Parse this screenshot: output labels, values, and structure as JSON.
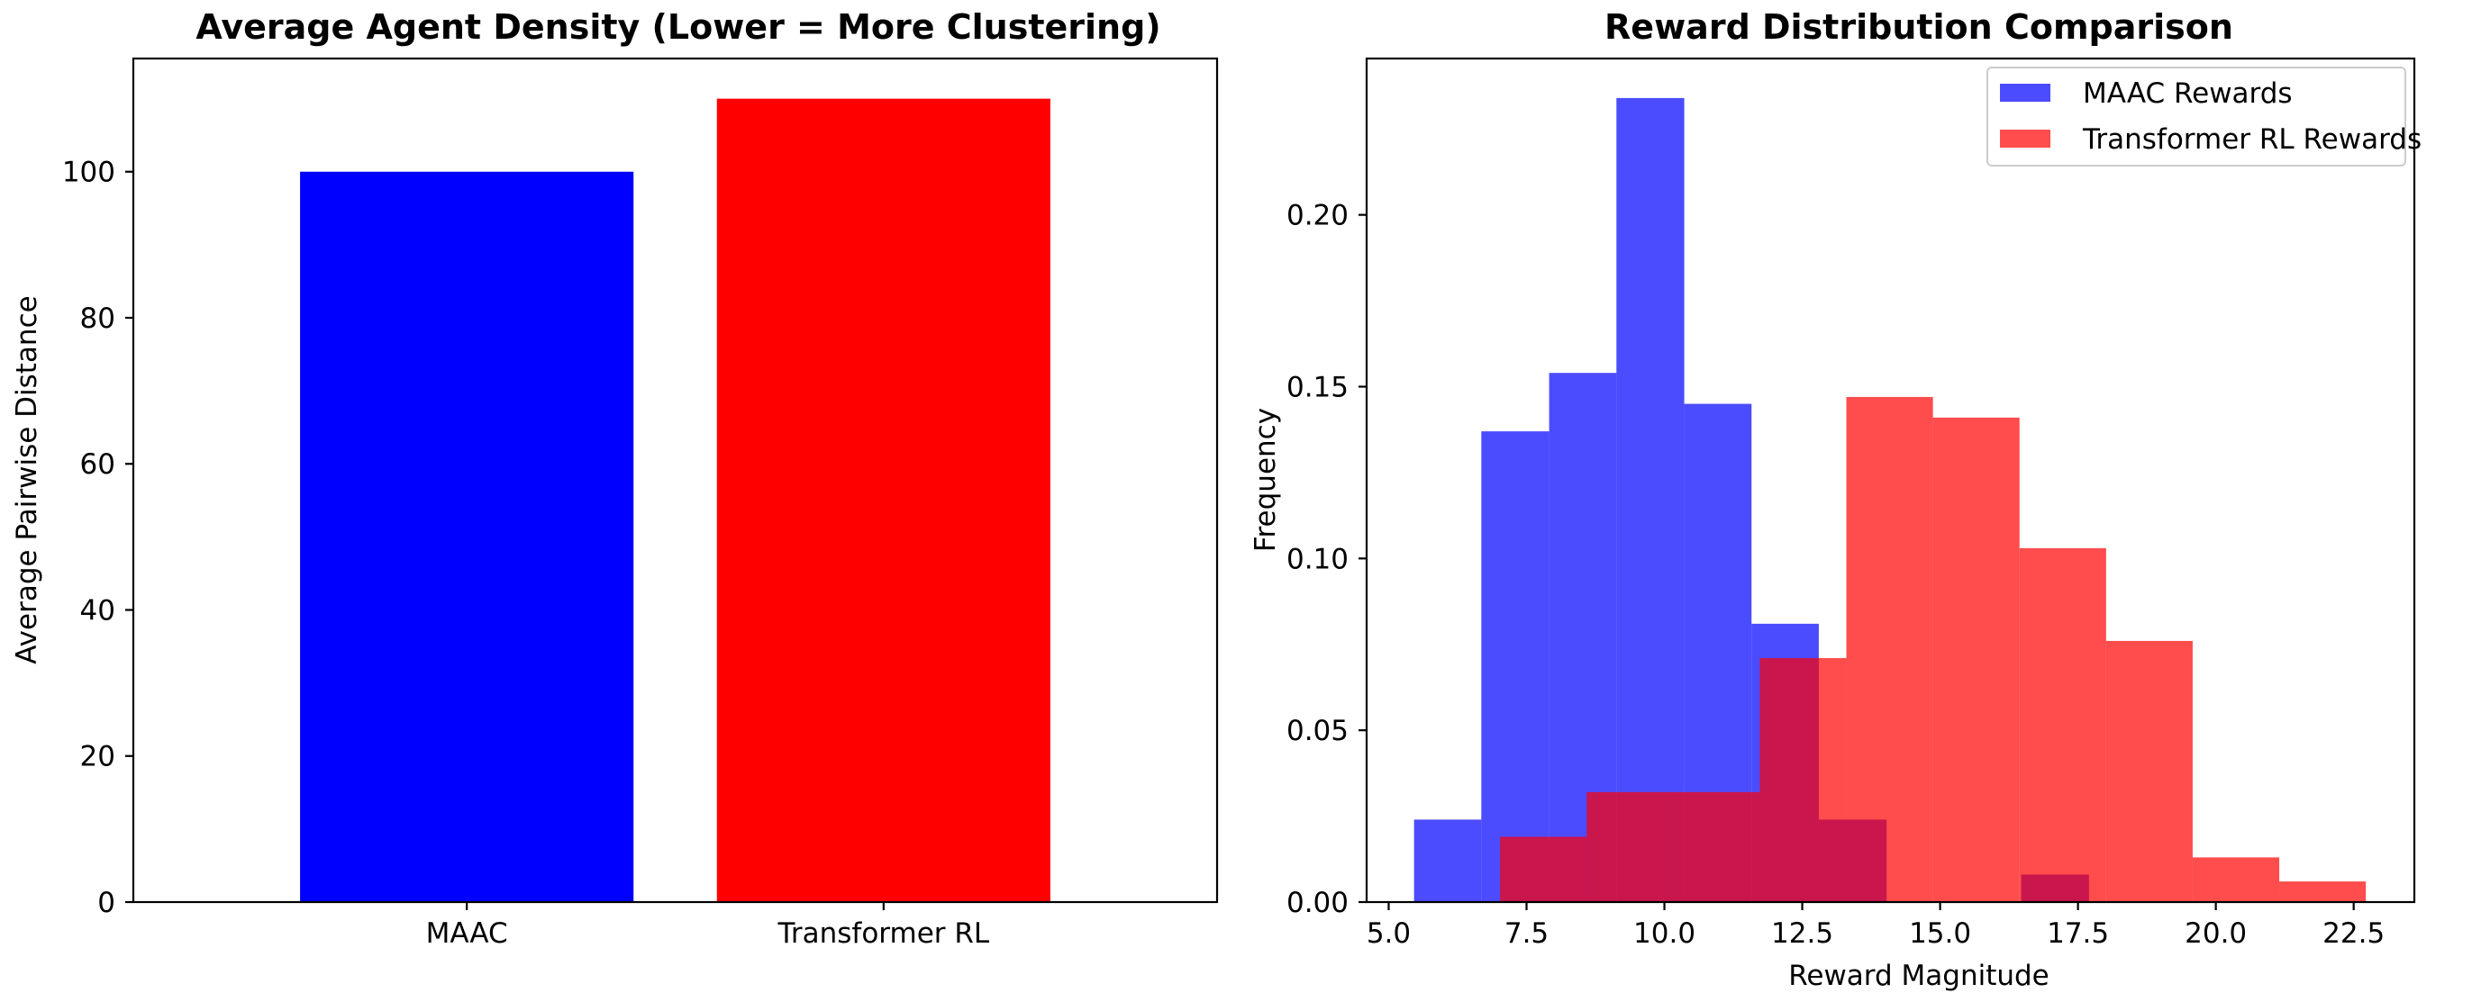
{
  "chart_data": [
    {
      "type": "bar",
      "title": "Average Agent Density (Lower = More Clustering)",
      "xlabel": "",
      "ylabel": "Average Pairwise Distance",
      "categories": [
        "MAAC",
        "Transformer RL"
      ],
      "values": [
        100,
        110
      ],
      "colors": [
        "#0000ff",
        "#ff0000"
      ],
      "ylim": [
        0,
        115.5
      ],
      "yticks": [
        0,
        20,
        40,
        60,
        80,
        100
      ],
      "ytick_labels": [
        "0",
        "20",
        "40",
        "60",
        "80",
        "100"
      ],
      "grid": false,
      "legend": null
    },
    {
      "type": "histogram",
      "title": "Reward Distribution Comparison",
      "xlabel": "Reward Magnitude",
      "ylabel": "Frequency",
      "xlim": [
        4.6,
        23.6
      ],
      "ylim": [
        0,
        0.2455
      ],
      "xticks": [
        5.0,
        7.5,
        10.0,
        12.5,
        15.0,
        17.5,
        20.0,
        22.5
      ],
      "xtick_labels": [
        "5.0",
        "7.5",
        "10.0",
        "12.5",
        "15.0",
        "17.5",
        "20.0",
        "22.5"
      ],
      "yticks": [
        0.0,
        0.05,
        0.1,
        0.15,
        0.2
      ],
      "ytick_labels": [
        "0.00",
        "0.05",
        "0.10",
        "0.15",
        "0.20"
      ],
      "grid": false,
      "legend_position": "top-right",
      "series": [
        {
          "name": "MAAC Rewards",
          "color": "#0000ff",
          "alpha": 0.7,
          "bin_edges": [
            5.46,
            6.68,
            7.91,
            9.13,
            10.36,
            11.58,
            12.8,
            14.03,
            15.25,
            16.47,
            17.7
          ],
          "values": [
            0.024,
            0.137,
            0.154,
            0.234,
            0.145,
            0.081,
            0.024,
            0.0,
            0.0,
            0.008
          ]
        },
        {
          "name": "Transformer RL Rewards",
          "color": "#ff0000",
          "alpha": 0.7,
          "bin_edges": [
            7.02,
            8.59,
            10.16,
            11.73,
            13.3,
            14.87,
            16.44,
            18.01,
            19.58,
            21.15,
            22.72
          ],
          "values": [
            0.019,
            0.032,
            0.032,
            0.071,
            0.147,
            0.141,
            0.103,
            0.076,
            0.013,
            0.006
          ]
        }
      ]
    }
  ]
}
